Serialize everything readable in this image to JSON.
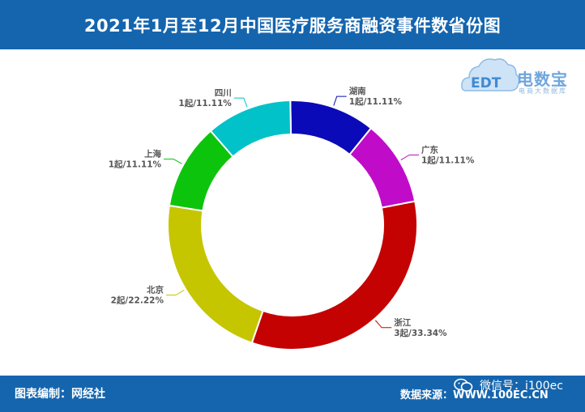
{
  "header": {
    "title": "2021年1月至12月中国医疗服务商融资事件数省份图"
  },
  "logo": {
    "brand": "电数宝",
    "tagline": "电商大数据库",
    "mark": "EDT"
  },
  "footer": {
    "editor": "图表编制：网经社",
    "source": "数据来源：WWW.100EC.CN",
    "wechat": "微信号：i100ec"
  },
  "icons": {
    "wechat": "wechat-icon",
    "logo": "cloud-logo-icon"
  },
  "colors": {
    "banner": "#1565ae",
    "湖南": "#0a0ab8",
    "广东": "#c00cc8",
    "浙江": "#c40202",
    "北京": "#c5c500",
    "上海": "#0dc40d",
    "四川": "#00c2c8"
  },
  "chart_data": {
    "type": "pie",
    "variant": "donut",
    "title": "2021年1月至12月中国医疗服务商融资事件数省份图",
    "unit": "起",
    "slices": [
      {
        "name": "湖南",
        "value": 1,
        "percent": "11.11%",
        "label": "1起/11.11%"
      },
      {
        "name": "广东",
        "value": 1,
        "percent": "11.11%",
        "label": "1起/11.11%"
      },
      {
        "name": "浙江",
        "value": 3,
        "percent": "33.34%",
        "label": "3起/33.34%"
      },
      {
        "name": "北京",
        "value": 2,
        "percent": "22.22%",
        "label": "2起/22.22%"
      },
      {
        "name": "上海",
        "value": 1,
        "percent": "11.11%",
        "label": "1起/11.11%"
      },
      {
        "name": "四川",
        "value": 1,
        "percent": "11.11%",
        "label": "1起/11.11%"
      }
    ]
  }
}
